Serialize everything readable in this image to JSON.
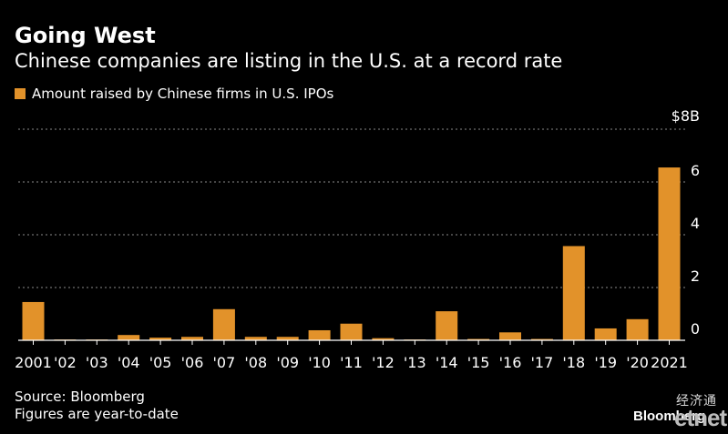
{
  "header": {
    "title": "Going West",
    "subtitle": "Chinese companies are listing in the U.S. at a record rate"
  },
  "legend": {
    "label": "Amount raised by Chinese firms in U.S. IPOs"
  },
  "footer": {
    "source": "Source: Bloomberg",
    "note": "Figures are year-to-date",
    "logo": "Bloomberg"
  },
  "watermark": {
    "cn": "经济通",
    "net": "etnet"
  },
  "colors": {
    "background": "#000000",
    "bar": "#e2922a",
    "text": "#ffffff",
    "grid": "#8a8a8a"
  },
  "chart_data": {
    "type": "bar",
    "title": "Going West",
    "subtitle": "Chinese companies are listing in the U.S. at a record rate",
    "categories": [
      "2001",
      "'02",
      "'03",
      "'04",
      "'05",
      "'06",
      "'07",
      "'08",
      "'09",
      "'10",
      "'11",
      "'12",
      "'13",
      "'14",
      "'15",
      "'16",
      "'17",
      "'18",
      "'19",
      "'20",
      "2021"
    ],
    "series": [
      {
        "name": "Amount raised by Chinese firms in U.S. IPOs",
        "values": [
          1.45,
          0.03,
          0.03,
          0.2,
          0.1,
          0.13,
          1.18,
          0.13,
          0.13,
          0.38,
          0.63,
          0.08,
          0.03,
          1.1,
          0.05,
          0.3,
          0.05,
          3.57,
          0.45,
          0.8,
          6.55
        ]
      }
    ],
    "ylim": [
      0,
      8
    ],
    "yticks": [
      0,
      2,
      4,
      6,
      8
    ],
    "ytick_labels": [
      "0",
      "2",
      "4",
      "6",
      "$8B"
    ],
    "xlabel": "",
    "ylabel": "",
    "grid": true,
    "legend_position": "top-left",
    "yaxis_position": "right"
  }
}
